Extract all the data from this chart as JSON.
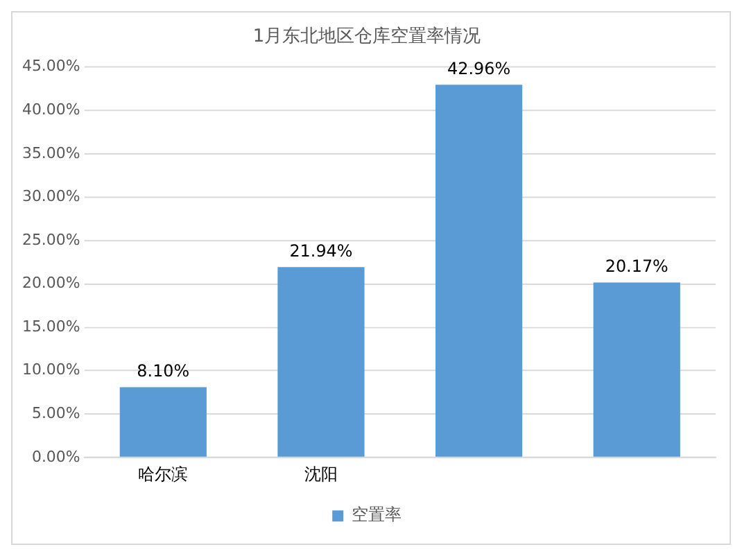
{
  "chart_data": {
    "type": "bar",
    "title": "1月东北地区仓库空置率情况",
    "categories": [
      "哈尔滨",
      "沈阳",
      null,
      null
    ],
    "series": [
      {
        "name": "空置率",
        "color": "#5b9bd5",
        "values": [
          8.1,
          21.94,
          42.96,
          20.17
        ]
      }
    ],
    "value_labels": [
      "8.10%",
      "21.94%",
      "42.96%",
      "20.17%"
    ],
    "ylim": [
      0,
      45
    ],
    "yticks": [
      {
        "value": 0,
        "label": "0.00%"
      },
      {
        "value": 5,
        "label": "5.00%"
      },
      {
        "value": 10,
        "label": "10.00%"
      },
      {
        "value": 15,
        "label": "15.00%"
      },
      {
        "value": 20,
        "label": "20.00%"
      },
      {
        "value": 25,
        "label": "25.00%"
      },
      {
        "value": 30,
        "label": "30.00%"
      },
      {
        "value": 35,
        "label": "35.00%"
      },
      {
        "value": 40,
        "label": "40.00%"
      },
      {
        "value": 45,
        "label": "45.00%"
      }
    ],
    "grid": "y",
    "legend": "bottom"
  }
}
